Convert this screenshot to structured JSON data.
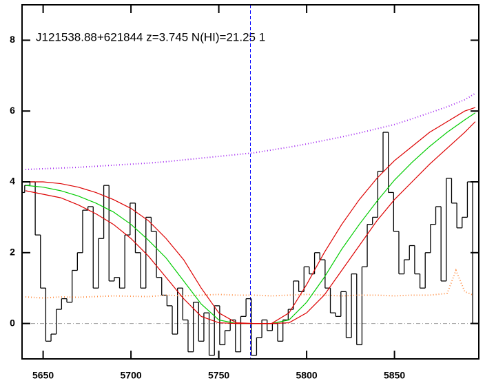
{
  "chart_data": {
    "type": "spectrum",
    "title": "J121538.88+621844 z=3.745 N(HI)=21.25 1",
    "xlim": [
      5638,
      5898
    ],
    "ylim": [
      -1,
      9
    ],
    "xticks": [
      5650,
      5700,
      5750,
      5800,
      5850
    ],
    "yticks": [
      0,
      2,
      4,
      6,
      8
    ],
    "vline": 5768,
    "hline": 0,
    "series": [
      {
        "style": "steps",
        "color": "#000000",
        "x": [
          5638,
          5641,
          5644,
          5647,
          5650,
          5653,
          5656,
          5659,
          5662,
          5665,
          5668,
          5671,
          5674,
          5677,
          5680,
          5683,
          5686,
          5689,
          5692,
          5695,
          5698,
          5701,
          5704,
          5707,
          5710,
          5713,
          5716,
          5719,
          5722,
          5725,
          5728,
          5731,
          5734,
          5737,
          5740,
          5743,
          5746,
          5749,
          5752,
          5755,
          5758,
          5761,
          5764,
          5767,
          5770,
          5773,
          5776,
          5779,
          5782,
          5785,
          5788,
          5791,
          5794,
          5797,
          5800,
          5803,
          5806,
          5809,
          5812,
          5815,
          5818,
          5821,
          5824,
          5827,
          5830,
          5833,
          5836,
          5839,
          5842,
          5845,
          5848,
          5851,
          5854,
          5857,
          5860,
          5863,
          5866,
          5869,
          5872,
          5875,
          5878,
          5881,
          5884,
          5887,
          5890,
          5893,
          5896
        ],
        "values": [
          3.7,
          3.9,
          4.0,
          2.5,
          1.0,
          -0.5,
          -0.3,
          0.4,
          0.7,
          0.6,
          1.5,
          2.0,
          3.2,
          3.3,
          1.0,
          2.4,
          3.9,
          1.2,
          1.3,
          1.0,
          2.5,
          3.4,
          2.0,
          1.0,
          3.0,
          2.6,
          1.3,
          0.8,
          0.5,
          -0.3,
          1.0,
          0.1,
          -0.8,
          0.6,
          -0.5,
          0.3,
          -0.9,
          0.5,
          -0.6,
          -0.2,
          0.1,
          -0.8,
          0.2,
          0.7,
          -0.9,
          -0.4,
          0.1,
          -0.2,
          0.0,
          -0.5,
          0.1,
          0.4,
          1.2,
          0.9,
          1.6,
          1.4,
          2.0,
          1.8,
          1.0,
          0.3,
          0.2,
          0.9,
          -0.4,
          1.4,
          -0.6,
          1.6,
          2.8,
          3.0,
          4.3,
          5.4,
          3.7,
          2.6,
          1.4,
          1.8,
          2.2,
          1.4,
          1.0,
          2.0,
          2.8,
          3.3,
          1.2,
          4.1,
          3.4,
          2.7,
          3.0,
          4.0,
          0.0
        ]
      },
      {
        "style": "dotted",
        "color": "#ff8c40",
        "x": [
          5640,
          5650,
          5660,
          5670,
          5680,
          5690,
          5700,
          5710,
          5720,
          5730,
          5740,
          5750,
          5760,
          5770,
          5780,
          5790,
          5800,
          5810,
          5820,
          5830,
          5840,
          5850,
          5860,
          5870,
          5880,
          5885,
          5890,
          5895
        ],
        "values": [
          0.75,
          0.72,
          0.75,
          0.74,
          0.76,
          0.78,
          0.77,
          0.76,
          0.8,
          0.78,
          0.8,
          0.82,
          0.8,
          0.8,
          0.78,
          0.8,
          0.82,
          0.8,
          0.78,
          0.8,
          0.8,
          0.78,
          0.8,
          0.8,
          0.85,
          1.5,
          0.9,
          0.8
        ]
      },
      {
        "style": "dotted",
        "color": "#a020f0",
        "x": [
          5640,
          5650,
          5660,
          5670,
          5680,
          5690,
          5700,
          5710,
          5720,
          5730,
          5740,
          5750,
          5760,
          5770,
          5780,
          5790,
          5800,
          5810,
          5820,
          5830,
          5840,
          5850,
          5860,
          5870,
          5880,
          5890,
          5896
        ],
        "values": [
          4.35,
          4.37,
          4.39,
          4.41,
          4.44,
          4.47,
          4.5,
          4.53,
          4.57,
          4.62,
          4.67,
          4.72,
          4.77,
          4.82,
          4.9,
          4.98,
          5.07,
          5.17,
          5.27,
          5.38,
          5.5,
          5.62,
          5.78,
          5.95,
          6.12,
          6.32,
          6.5
        ]
      },
      {
        "style": "line",
        "color": "#00cc00",
        "x": [
          5640,
          5650,
          5660,
          5670,
          5680,
          5690,
          5700,
          5710,
          5720,
          5730,
          5740,
          5750,
          5760,
          5770,
          5780,
          5790,
          5800,
          5810,
          5820,
          5830,
          5840,
          5850,
          5860,
          5870,
          5880,
          5890,
          5896
        ],
        "values": [
          3.9,
          3.85,
          3.75,
          3.6,
          3.4,
          3.15,
          2.8,
          2.35,
          1.85,
          1.2,
          0.55,
          0.1,
          0,
          0,
          0,
          0.1,
          0.6,
          1.3,
          2.1,
          2.8,
          3.45,
          4.05,
          4.55,
          5.0,
          5.4,
          5.75,
          5.95
        ]
      },
      {
        "style": "line",
        "color": "#dd0000",
        "x": [
          5640,
          5650,
          5660,
          5670,
          5680,
          5690,
          5700,
          5710,
          5720,
          5730,
          5740,
          5750,
          5760,
          5770,
          5780,
          5790,
          5800,
          5810,
          5820,
          5830,
          5840,
          5850,
          5860,
          5870,
          5880,
          5890,
          5896
        ],
        "values": [
          4.0,
          4.0,
          3.95,
          3.85,
          3.7,
          3.5,
          3.25,
          2.9,
          2.4,
          1.8,
          1.0,
          0.3,
          0.02,
          0,
          0,
          0.3,
          1.1,
          2.0,
          2.8,
          3.5,
          4.1,
          4.6,
          5.0,
          5.4,
          5.7,
          6.0,
          6.1
        ]
      },
      {
        "style": "line",
        "color": "#dd0000",
        "x": [
          5640,
          5650,
          5660,
          5670,
          5680,
          5690,
          5700,
          5710,
          5720,
          5730,
          5740,
          5750,
          5760,
          5770,
          5780,
          5790,
          5800,
          5810,
          5820,
          5830,
          5840,
          5850,
          5860,
          5870,
          5880,
          5890,
          5896
        ],
        "values": [
          3.75,
          3.65,
          3.55,
          3.35,
          3.1,
          2.8,
          2.4,
          1.9,
          1.3,
          0.7,
          0.2,
          0.02,
          0,
          0,
          0,
          0.02,
          0.3,
          0.8,
          1.5,
          2.2,
          2.9,
          3.5,
          4.0,
          4.5,
          4.95,
          5.4,
          5.7
        ]
      }
    ]
  }
}
